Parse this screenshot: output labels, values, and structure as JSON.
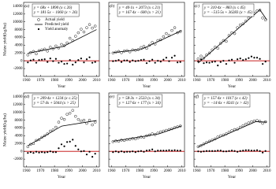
{
  "chart_data": [
    {
      "type": "line",
      "panel_label": "(a)",
      "x_label": "Year",
      "y_label": "Maize yield(kg/ha)",
      "ytick_labels": true,
      "legend": "upper left",
      "annotations": [
        "y = 68x + 1890  (x ≤ 26)",
        "y = 181·5x − 1060  (x > 26)"
      ],
      "xlim": [
        1958,
        2012
      ],
      "xticks": [
        1960,
        1970,
        1980,
        1990,
        2000,
        2010
      ],
      "ylim": [
        -4000,
        15000
      ],
      "yticks": [
        -2000,
        0,
        2000,
        4000,
        6000,
        8000,
        10000,
        12000,
        14000
      ],
      "series": [
        {
          "name": "Actual yield",
          "marker": "open-circle",
          "color": "#000000",
          "x": [
            1961,
            1963,
            1965,
            1967,
            1969,
            1971,
            1973,
            1975,
            1977,
            1979,
            1981,
            1983,
            1985,
            1987,
            1989,
            1991,
            1993,
            1995,
            1997,
            1999,
            2001,
            2003,
            2005,
            2007,
            2009
          ],
          "values": [
            1500,
            2100,
            2400,
            1800,
            2600,
            2800,
            3000,
            2500,
            3500,
            3100,
            3800,
            3300,
            4200,
            3900,
            4600,
            5800,
            5200,
            6300,
            7200,
            8100,
            7400,
            8500,
            9300,
            8400,
            8900
          ]
        },
        {
          "name": "Predicted yield",
          "marker": "none",
          "color": "#000000",
          "x": [
            1961,
            1986,
            1987,
            2010
          ],
          "values": [
            1958,
            3658,
            3840.5,
            8015
          ]
        },
        {
          "name": "Yield anomaly",
          "marker": "filled-circle",
          "color": "#000000",
          "x": [
            1961,
            1963,
            1965,
            1967,
            1969,
            1971,
            1973,
            1975,
            1977,
            1979,
            1981,
            1983,
            1985,
            1987,
            1989,
            1991,
            1993,
            1995,
            1997,
            1999,
            2001,
            2003,
            2005,
            2007,
            2009
          ],
          "values": [
            -400,
            100,
            300,
            -500,
            200,
            300,
            400,
            -300,
            600,
            -100,
            500,
            -500,
            -200,
            -800,
            -700,
            200,
            -1000,
            -400,
            200,
            600,
            -400,
            400,
            900,
            -500,
            -300
          ]
        }
      ]
    },
    {
      "type": "line",
      "panel_label": "(b)",
      "x_label": "Year",
      "ytick_labels": false,
      "annotations": [
        "y = 40·1x + 2073  (x ≤ 21)",
        "y = 167·4x − 600  (x > 21)"
      ],
      "xlim": [
        1958,
        2012
      ],
      "xticks": [
        1960,
        1970,
        1980,
        1990,
        2000,
        2010
      ],
      "ylim": [
        -4000,
        15000
      ],
      "yticks": [
        -2000,
        0,
        2000,
        4000,
        6000,
        8000,
        10000,
        12000,
        14000
      ],
      "series": [
        {
          "marker": "open-circle",
          "color": "#000000",
          "x": [
            1961,
            1963,
            1965,
            1967,
            1969,
            1971,
            1973,
            1975,
            1977,
            1979,
            1981,
            1983,
            1985,
            1987,
            1989,
            1991,
            1993,
            1995,
            1997,
            1999,
            2001,
            2003,
            2005,
            2007,
            2009
          ],
          "values": [
            2000,
            2200,
            2400,
            2100,
            2500,
            2600,
            2300,
            2800,
            2700,
            2900,
            3400,
            3700,
            3200,
            4000,
            4700,
            4300,
            5200,
            5400,
            6200,
            7000,
            6500,
            7800,
            8500,
            7200,
            7500
          ]
        },
        {
          "marker": "none",
          "color": "#000000",
          "x": [
            1961,
            1981,
            1982,
            2010
          ],
          "values": [
            2113,
            2915,
            3083,
            7770
          ]
        },
        {
          "marker": "filled-circle",
          "color": "#000000",
          "x": [
            1961,
            1963,
            1965,
            1967,
            1969,
            1971,
            1973,
            1975,
            1977,
            1979,
            1981,
            1983,
            1985,
            1987,
            1989,
            1991,
            1993,
            1995,
            1997,
            1999,
            2001,
            2003,
            2005,
            2007,
            2009
          ],
          "values": [
            -100,
            0,
            200,
            -300,
            100,
            100,
            -300,
            100,
            -100,
            0,
            200,
            300,
            -600,
            -100,
            300,
            -500,
            0,
            -200,
            300,
            800,
            -100,
            800,
            1300,
            -400,
            -300
          ]
        }
      ]
    },
    {
      "type": "line",
      "panel_label": "(c)",
      "x_label": "Year",
      "ytick_labels": false,
      "annotations": [
        "y = 310·4x − 883  (x ≤ 45)",
        "y = −515·5x + 36283  (x > 45)"
      ],
      "xlim": [
        1958,
        2012
      ],
      "xticks": [
        1960,
        1970,
        1980,
        1990,
        2000,
        2010
      ],
      "ylim": [
        -4000,
        15000
      ],
      "yticks": [
        -2000,
        0,
        2000,
        4000,
        6000,
        8000,
        10000,
        12000,
        14000
      ],
      "series": [
        {
          "marker": "open-circle",
          "color": "#000000",
          "x": [
            1961,
            1963,
            1965,
            1967,
            1969,
            1971,
            1973,
            1975,
            1977,
            1979,
            1981,
            1983,
            1985,
            1987,
            1989,
            1991,
            1993,
            1995,
            1997,
            1999,
            2001,
            2003,
            2005,
            2007,
            2009
          ],
          "values": [
            500,
            1200,
            700,
            1500,
            2000,
            2800,
            3500,
            3200,
            4500,
            5200,
            5000,
            6500,
            7200,
            7000,
            8500,
            9200,
            9500,
            10200,
            11000,
            12000,
            12200,
            12800,
            13000,
            11000,
            10500
          ]
        },
        {
          "marker": "none",
          "color": "#000000",
          "x": [
            1961,
            2005,
            2006,
            2010
          ],
          "values": [
            -573,
            13085,
            12570,
            10508
          ]
        },
        {
          "marker": "filled-circle",
          "color": "#000000",
          "x": [
            1961,
            1963,
            1965,
            1967,
            1969,
            1971,
            1973,
            1975,
            1977,
            1979,
            1981,
            1983,
            1985,
            1987,
            1989,
            1991,
            1993,
            1995,
            1997,
            1999,
            2001,
            2003,
            2005,
            2007,
            2009
          ],
          "values": [
            -200,
            400,
            -600,
            -400,
            -500,
            -300,
            -200,
            -1200,
            -300,
            0,
            -800,
            100,
            300,
            -500,
            400,
            600,
            200,
            400,
            700,
            1100,
            800,
            800,
            500,
            -800,
            -200
          ]
        }
      ]
    },
    {
      "type": "line",
      "panel_label": "(d)",
      "x_label": "Year",
      "y_label": "Maize yield(kg/ha)",
      "ytick_labels": true,
      "annotations": [
        "y = 209·4x + 1234  (x ≤ 25)",
        "y = 57·4x + 5044  (x > 25)"
      ],
      "xlim": [
        1958,
        2012
      ],
      "xticks": [
        1960,
        1970,
        1980,
        1990,
        2000,
        2010
      ],
      "ylim": [
        -4000,
        15000
      ],
      "yticks": [
        -2000,
        0,
        2000,
        4000,
        6000,
        8000,
        10000,
        12000,
        14000
      ],
      "series": [
        {
          "marker": "open-circle",
          "color": "#000000",
          "x": [
            1961,
            1963,
            1965,
            1967,
            1969,
            1971,
            1973,
            1975,
            1977,
            1979,
            1981,
            1983,
            1985,
            1987,
            1989,
            1991,
            1993,
            1995,
            1997,
            1999,
            2001,
            2003,
            2005,
            2007,
            2009
          ],
          "values": [
            1200,
            1800,
            2000,
            2800,
            3000,
            3600,
            4000,
            4500,
            5200,
            5500,
            6200,
            7500,
            8500,
            8200,
            9500,
            9800,
            10500,
            9000,
            8200,
            7800,
            8000,
            7200,
            8000,
            6800,
            7500
          ]
        },
        {
          "marker": "none",
          "color": "#000000",
          "x": [
            1961,
            1985,
            1986,
            2010
          ],
          "values": [
            1443,
            6469,
            6536,
            7914
          ]
        },
        {
          "marker": "filled-circle",
          "color": "#000000",
          "x": [
            1961,
            1963,
            1965,
            1967,
            1969,
            1971,
            1973,
            1975,
            1977,
            1979,
            1981,
            1983,
            1985,
            1987,
            1989,
            1991,
            1993,
            1995,
            1997,
            1999,
            2001,
            2003,
            2005,
            2007,
            2009
          ],
          "values": [
            -400,
            -200,
            -400,
            -100,
            -300,
            -200,
            -300,
            -200,
            0,
            -200,
            -200,
            800,
            1800,
            1300,
            2400,
            2500,
            3000,
            1400,
            500,
            0,
            100,
            -800,
            -100,
            -1400,
            -600
          ]
        }
      ]
    },
    {
      "type": "line",
      "panel_label": "(e)",
      "x_label": "Year",
      "ytick_labels": false,
      "annotations": [
        "y = 58·3x + 2533  (x ≤ 34)",
        "y = 127·6x + 177  (x > 34)"
      ],
      "xlim": [
        1958,
        2012
      ],
      "xticks": [
        1960,
        1970,
        1980,
        1990,
        2000,
        2010
      ],
      "ylim": [
        -4000,
        15000
      ],
      "yticks": [
        -2000,
        0,
        2000,
        4000,
        6000,
        8000,
        10000,
        12000,
        14000
      ],
      "series": [
        {
          "marker": "open-circle",
          "color": "#000000",
          "x": [
            1961,
            1963,
            1965,
            1967,
            1969,
            1971,
            1973,
            1975,
            1977,
            1979,
            1981,
            1983,
            1985,
            1987,
            1989,
            1991,
            1993,
            1995,
            1997,
            1999,
            2001,
            2003,
            2005,
            2007,
            2009
          ],
          "values": [
            2500,
            2700,
            2600,
            2900,
            2800,
            3000,
            3100,
            3300,
            3200,
            3500,
            3700,
            3600,
            4000,
            4200,
            4500,
            4300,
            4700,
            5000,
            5200,
            5400,
            5600,
            5800,
            6100,
            6300,
            6500
          ]
        },
        {
          "marker": "none",
          "color": "#000000",
          "x": [
            1961,
            1994,
            1995,
            2010
          ],
          "values": [
            2591,
            4515,
            4643,
            6557
          ]
        },
        {
          "marker": "filled-circle",
          "color": "#000000",
          "x": [
            1961,
            1963,
            1965,
            1967,
            1969,
            1971,
            1973,
            1975,
            1977,
            1979,
            1981,
            1983,
            1985,
            1987,
            1989,
            1991,
            1993,
            1995,
            1997,
            1999,
            2001,
            2003,
            2005,
            2007,
            2009
          ],
          "values": [
            -200,
            0,
            -200,
            0,
            -200,
            -100,
            -100,
            0,
            -200,
            0,
            100,
            -100,
            200,
            300,
            500,
            0,
            200,
            200,
            200,
            200,
            300,
            200,
            300,
            200,
            200
          ]
        }
      ]
    },
    {
      "type": "line",
      "panel_label": "(f)",
      "x_label": "Year",
      "ytick_labels": false,
      "annotations": [
        "y = 157·4x + 1017  (x ≤ 42)",
        "y = −14·6x + 8241  (x > 42)"
      ],
      "xlim": [
        1958,
        2012
      ],
      "xticks": [
        1960,
        1970,
        1980,
        1990,
        2000,
        2010
      ],
      "ylim": [
        -4000,
        15000
      ],
      "yticks": [
        -2000,
        0,
        2000,
        4000,
        6000,
        8000,
        10000,
        12000,
        14000
      ],
      "series": [
        {
          "marker": "open-circle",
          "color": "#000000",
          "x": [
            1961,
            1963,
            1965,
            1967,
            1969,
            1971,
            1973,
            1975,
            1977,
            1979,
            1981,
            1983,
            1985,
            1987,
            1989,
            1991,
            1993,
            1995,
            1997,
            1999,
            2001,
            2003,
            2005,
            2007,
            2009
          ],
          "values": [
            1200,
            1500,
            1900,
            2300,
            2600,
            2900,
            3200,
            3700,
            4000,
            4200,
            4500,
            4900,
            5300,
            5600,
            5700,
            6200,
            6600,
            7000,
            7300,
            7600,
            7800,
            7900,
            7700,
            7200,
            7600
          ]
        },
        {
          "marker": "none",
          "color": "#000000",
          "x": [
            1961,
            2002,
            2003,
            2010
          ],
          "values": [
            1174,
            7628,
            7613,
            7511
          ]
        },
        {
          "marker": "filled-circle",
          "color": "#000000",
          "x": [
            1961,
            1963,
            1965,
            1967,
            1969,
            1971,
            1973,
            1975,
            1977,
            1979,
            1981,
            1983,
            1985,
            1987,
            1989,
            1991,
            1993,
            1995,
            1997,
            1999,
            2001,
            2003,
            2005,
            2007,
            2009
          ],
          "values": [
            0,
            -100,
            0,
            100,
            100,
            100,
            100,
            200,
            200,
            0,
            0,
            100,
            200,
            100,
            -100,
            100,
            200,
            300,
            300,
            200,
            200,
            300,
            100,
            -300,
            100
          ]
        }
      ]
    }
  ]
}
